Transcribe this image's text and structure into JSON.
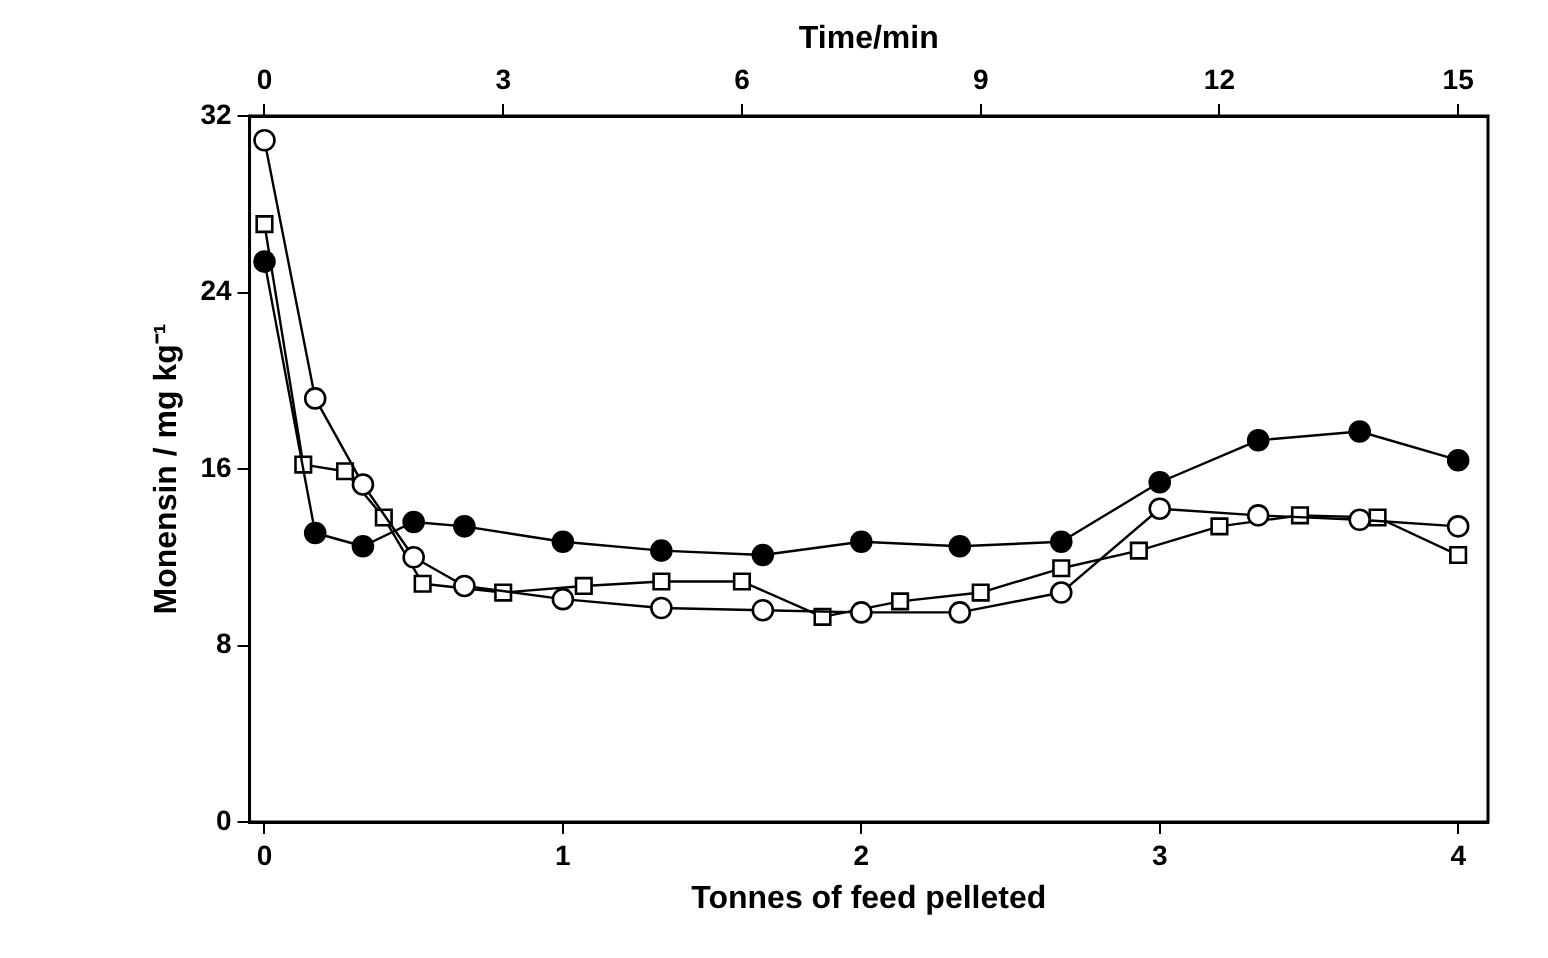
{
  "chart_data": {
    "type": "line",
    "xlabel": "Tonnes of feed pelleted",
    "ylabel": "Monensin / mg kg⁻¹",
    "x2label": "Time/min",
    "xlim": [
      -0.05,
      4.1
    ],
    "xticks": [
      0,
      1,
      2,
      3,
      4
    ],
    "x2lim": [
      -0.1875,
      15.375
    ],
    "x2ticks": [
      0,
      3,
      6,
      9,
      12,
      15
    ],
    "ylim": [
      0,
      32
    ],
    "yticks": [
      0,
      8,
      16,
      24,
      32
    ],
    "grid": false,
    "legend": false,
    "line_style": "solid",
    "series": [
      {
        "color": "#000000",
        "marker": "circle",
        "x": [
          0,
          0.17,
          0.33,
          0.5,
          0.67,
          1,
          1.33,
          1.67,
          2,
          2.33,
          2.67,
          3,
          3.33,
          3.67,
          4
        ],
        "values": [
          25.4,
          13.1,
          12.5,
          13.6,
          13.4,
          12.7,
          12.3,
          12.1,
          12.7,
          12.5,
          12.7,
          15.4,
          17.3,
          17.7,
          16.4
        ]
      },
      {
        "color": "#ffffff",
        "marker": "circle",
        "x": [
          0,
          0.17,
          0.33,
          0.5,
          0.67,
          1,
          1.33,
          1.67,
          2,
          2.33,
          2.67,
          3,
          3.33,
          3.67,
          4
        ],
        "values": [
          30.9,
          19.2,
          15.3,
          12.0,
          10.7,
          10.1,
          9.7,
          9.6,
          9.5,
          9.5,
          10.4,
          14.2,
          13.9,
          13.7,
          13.4
        ]
      },
      {
        "color": "#ffffff",
        "marker": "square",
        "x": [
          0,
          0.13,
          0.27,
          0.4,
          0.53,
          0.8,
          1.07,
          1.33,
          1.6,
          1.87,
          2.13,
          2.4,
          2.67,
          2.93,
          3.2,
          3.47,
          3.73,
          4
        ],
        "values": [
          27.1,
          16.2,
          15.9,
          13.8,
          10.8,
          10.4,
          10.7,
          10.9,
          10.9,
          9.3,
          10.0,
          10.4,
          11.5,
          12.3,
          13.4,
          13.9,
          13.8,
          12.1
        ]
      }
    ]
  }
}
